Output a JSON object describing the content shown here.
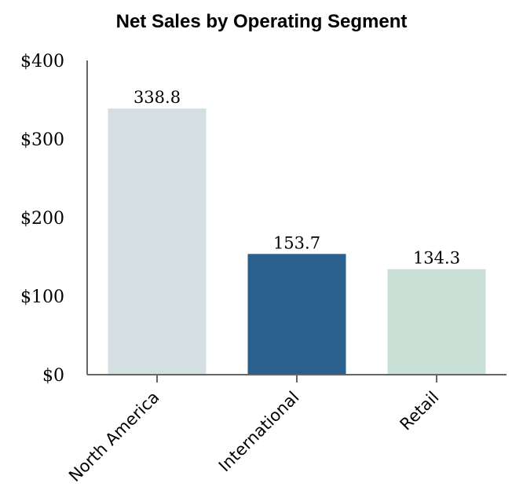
{
  "chart_data": {
    "type": "bar",
    "title": "Net Sales by Operating Segment",
    "categories": [
      "North America",
      "International",
      "Retail"
    ],
    "values": [
      338.8,
      153.7,
      134.3
    ],
    "value_labels": [
      "338.8",
      "153.7",
      "134.3"
    ],
    "colors": [
      "#d3dfe1",
      "#2a608d",
      "#c9e0d7"
    ],
    "ylim": [
      0,
      400
    ],
    "yticks": [
      0,
      100,
      200,
      300,
      400
    ],
    "ytick_labels": [
      "$0",
      "$100",
      "$200",
      "$300",
      "$400"
    ],
    "xlabel": "",
    "ylabel": "",
    "grid": false,
    "axis_color": "#666666"
  }
}
